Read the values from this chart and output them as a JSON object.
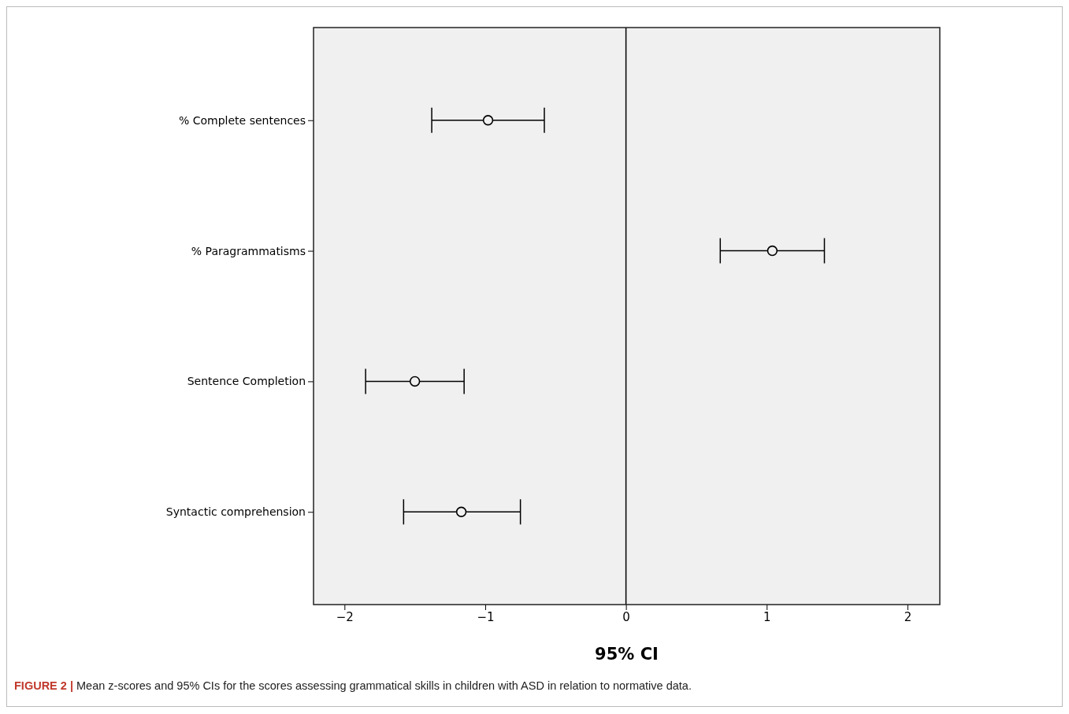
{
  "chart_data": {
    "type": "scatter",
    "orientation": "horizontal",
    "categories": [
      "% Complete sentences",
      "% Paragrammatisms",
      "Sentence Completion",
      "Syntactic comprehension"
    ],
    "values": [
      -0.98,
      1.04,
      -1.5,
      -1.17
    ],
    "errors": [
      [
        -1.38,
        -0.58
      ],
      [
        0.67,
        1.41
      ],
      [
        -1.85,
        -1.15
      ],
      [
        -1.58,
        -0.75
      ]
    ],
    "color": "#000000",
    "marker": "circle",
    "xlim": [
      -2.22,
      2.23
    ],
    "xticks": [
      -2,
      -1,
      0,
      1,
      2
    ],
    "xlabel": "95% CI",
    "ref_lines": [
      {
        "axis": "x",
        "value": 0,
        "color": "#000000"
      }
    ],
    "grid": false,
    "annotations": [
      "FIGURE 2 | Mean z-scores and 95% CIs for the scores assessing grammatical skills in children with ASD in relation to normative data."
    ]
  }
}
